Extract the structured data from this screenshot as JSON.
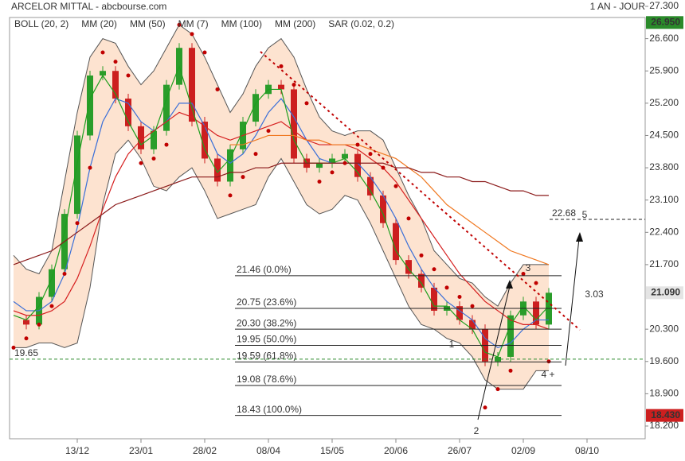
{
  "chart_data": {
    "type": "candlestick",
    "title": "ARCELOR MITTAL - abcbourse.com",
    "subtitle": "1 AN - JOUR",
    "categories": [
      null,
      null,
      null,
      null,
      null,
      "13/12",
      null,
      null,
      null,
      null,
      "23/01",
      null,
      null,
      null,
      null,
      "28/02",
      null,
      null,
      null,
      null,
      "08/04",
      null,
      null,
      null,
      null,
      "15/05",
      null,
      null,
      null,
      null,
      "20/06",
      null,
      null,
      null,
      null,
      "26/07",
      null,
      null,
      null,
      null,
      "02/09",
      null,
      null,
      null,
      null,
      "08/10"
    ],
    "candles": {
      "up_color": "#2a9d2a",
      "down_color": "#cc1f1f",
      "values": [
        20.5,
        20.4,
        21.0,
        21.6,
        22.8,
        24.5,
        25.8,
        25.9,
        25.3,
        24.7,
        24.2,
        24.6,
        25.6,
        26.4,
        24.8,
        24.0,
        23.5,
        24.2,
        24.8,
        25.4,
        25.6,
        25.5,
        24.0,
        23.8,
        23.9,
        24.0,
        24.1,
        23.6,
        23.2,
        22.6,
        21.8,
        21.5,
        21.2,
        20.7,
        20.8,
        20.5,
        20.3,
        19.6,
        19.7,
        20.6,
        20.9,
        20.4,
        21.09,
        null,
        null,
        null
      ]
    },
    "series": [
      {
        "name": "BOLL (20, 2)",
        "color": "#555555",
        "fill": "#fde3d0",
        "upper": [
          21.9,
          21.6,
          21.5,
          22.0,
          23.5,
          25.0,
          26.2,
          26.6,
          26.5,
          26.0,
          25.6,
          25.9,
          26.4,
          26.9,
          26.7,
          26.2,
          25.6,
          25.0,
          25.4,
          26.0,
          26.4,
          26.6,
          26.2,
          25.5,
          24.9,
          24.6,
          24.5,
          24.6,
          24.6,
          24.4,
          23.8,
          23.2,
          22.7,
          22.0,
          21.7,
          21.4,
          21.3,
          21.0,
          20.8,
          21.3,
          21.7,
          21.7,
          21.7,
          null,
          null,
          null
        ],
        "lower": [
          19.9,
          19.9,
          20.0,
          20.0,
          19.9,
          20.0,
          21.2,
          23.0,
          24.1,
          24.4,
          24.0,
          23.4,
          23.3,
          23.6,
          23.8,
          23.3,
          22.7,
          22.8,
          22.9,
          23.0,
          23.6,
          24.0,
          23.5,
          23.0,
          22.8,
          22.9,
          23.2,
          23.1,
          22.6,
          22.0,
          21.4,
          20.8,
          20.4,
          20.3,
          20.1,
          20.0,
          19.7,
          19.2,
          19.0,
          19.0,
          19.0,
          19.4,
          19.4,
          null,
          null,
          null
        ]
      },
      {
        "name": "MM (20)",
        "color": "#3a6fd8",
        "values": [
          20.9,
          20.7,
          20.7,
          20.9,
          21.5,
          22.5,
          23.8,
          24.8,
          25.3,
          25.2,
          24.8,
          24.6,
          24.8,
          25.2,
          25.2,
          24.7,
          24.1,
          23.9,
          24.1,
          24.5,
          25.0,
          25.3,
          24.9,
          24.4,
          24.0,
          23.9,
          23.9,
          23.9,
          23.6,
          23.2,
          22.7,
          22.1,
          21.6,
          21.2,
          20.9,
          20.7,
          20.5,
          20.1,
          19.9,
          20.0,
          20.3,
          20.5,
          20.5,
          null,
          null,
          null
        ]
      },
      {
        "name": "MM (50)",
        "color": "#d62020",
        "values": [
          20.7,
          20.6,
          20.6,
          20.7,
          20.9,
          21.4,
          22.1,
          22.9,
          23.6,
          24.1,
          24.4,
          24.6,
          24.8,
          25.0,
          24.9,
          24.7,
          24.5,
          24.4,
          24.5,
          24.6,
          24.7,
          24.8,
          24.6,
          24.4,
          24.3,
          24.3,
          24.3,
          24.2,
          24.0,
          23.8,
          23.5,
          23.1,
          22.7,
          22.3,
          21.9,
          21.5,
          21.2,
          20.9,
          20.7,
          20.5,
          20.4,
          20.4,
          20.3,
          null,
          null,
          null
        ]
      },
      {
        "name": "MM (7)",
        "color": "#1e9e1e",
        "values": [
          20.6,
          20.5,
          20.8,
          21.4,
          22.4,
          23.9,
          25.3,
          25.8,
          25.4,
          24.8,
          24.3,
          24.5,
          25.3,
          26.0,
          25.1,
          24.2,
          23.7,
          24.0,
          24.6,
          25.2,
          25.5,
          25.5,
          24.4,
          23.9,
          23.9,
          23.9,
          24.0,
          23.7,
          23.3,
          22.8,
          22.0,
          21.6,
          21.3,
          20.8,
          20.8,
          20.5,
          20.3,
          19.8,
          19.7,
          20.4,
          20.8,
          20.5,
          20.8,
          null,
          null,
          null
        ]
      },
      {
        "name": "MM (100)",
        "color": "#f07820",
        "values": [
          null,
          null,
          null,
          null,
          null,
          null,
          null,
          null,
          null,
          null,
          null,
          null,
          null,
          null,
          null,
          null,
          null,
          24.3,
          24.3,
          24.4,
          24.5,
          24.5,
          24.5,
          24.4,
          24.4,
          24.3,
          24.3,
          24.3,
          24.2,
          24.1,
          24.0,
          23.8,
          23.6,
          23.3,
          23.0,
          22.8,
          22.6,
          22.4,
          22.2,
          22.0,
          21.9,
          21.8,
          21.7,
          null,
          null,
          null
        ]
      },
      {
        "name": "MM (200)",
        "color": "#8b1a1a",
        "values": [
          21.7,
          21.8,
          21.9,
          22.0,
          22.2,
          22.4,
          22.6,
          22.8,
          23.0,
          23.1,
          23.2,
          23.3,
          23.4,
          23.5,
          23.6,
          23.6,
          23.6,
          23.7,
          23.7,
          23.8,
          23.8,
          23.9,
          23.9,
          23.9,
          23.9,
          23.9,
          23.9,
          23.9,
          23.9,
          23.9,
          23.8,
          23.8,
          23.7,
          23.7,
          23.6,
          23.6,
          23.5,
          23.5,
          23.4,
          23.3,
          23.3,
          23.2,
          23.2,
          null,
          null,
          null
        ]
      },
      {
        "name": "SAR (0.02, 0.2)",
        "color": "#c00000",
        "dots": true,
        "values": [
          19.9,
          20.1,
          20.4,
          20.8,
          21.5,
          22.6,
          23.8,
          26.3,
          26.1,
          25.8,
          23.9,
          24.0,
          24.3,
          26.9,
          26.7,
          26.3,
          25.5,
          23.2,
          23.6,
          24.1,
          24.6,
          26.0,
          25.6,
          25.2,
          23.5,
          23.7,
          23.9,
          24.3,
          24.1,
          23.8,
          23.4,
          22.7,
          21.9,
          21.6,
          21.2,
          21.0,
          20.8,
          18.6,
          19.0,
          19.4,
          21.5,
          21.3,
          19.6,
          null,
          null,
          null
        ]
      }
    ],
    "ylim": [
      18.2,
      27.3
    ],
    "yticks": [
      {
        "value": 27.3,
        "label": "27.300"
      },
      {
        "value": 26.6,
        "label": "26.600"
      },
      {
        "value": 25.9,
        "label": "25.900"
      },
      {
        "value": 25.2,
        "label": "25.200"
      },
      {
        "value": 24.5,
        "label": "24.500"
      },
      {
        "value": 23.8,
        "label": "23.800"
      },
      {
        "value": 23.1,
        "label": "23.100"
      },
      {
        "value": 22.4,
        "label": "22.400"
      },
      {
        "value": 21.7,
        "label": "21.700"
      },
      {
        "value": 20.3,
        "label": "20.300"
      },
      {
        "value": 19.6,
        "label": "19.600"
      },
      {
        "value": 18.9,
        "label": "18.900"
      },
      {
        "value": 18.2,
        "label": "18.200"
      }
    ],
    "fibonacci": [
      {
        "value": 21.46,
        "label": "21.46 (0.0%)"
      },
      {
        "value": 20.75,
        "label": "20.75 (23.6%)"
      },
      {
        "value": 20.3,
        "label": "20.30 (38.2%)"
      },
      {
        "value": 19.95,
        "label": "19.95 (50.0%)"
      },
      {
        "value": 19.59,
        "label": "19.59 (61.8%)"
      },
      {
        "value": 19.08,
        "label": "19.08 (78.6%)"
      },
      {
        "value": 18.43,
        "label": "18.43 (100.0%)"
      }
    ],
    "price_labels": [
      {
        "value": 26.95,
        "label": "26.950",
        "color": "#2a8a2a"
      },
      {
        "value": 21.09,
        "label": "21.090",
        "color": "#e4e4e4"
      },
      {
        "value": 18.43,
        "label": "18.430",
        "color": "#cc1f1f"
      }
    ],
    "levels": [
      {
        "value": 22.68,
        "label": "22.68",
        "color": "#222222"
      },
      {
        "value": 19.65,
        "label": "19.65",
        "color": "#2a8a2a"
      }
    ],
    "annotations": [
      "1",
      "2",
      "3",
      "4 +",
      "5",
      "3.03"
    ]
  }
}
